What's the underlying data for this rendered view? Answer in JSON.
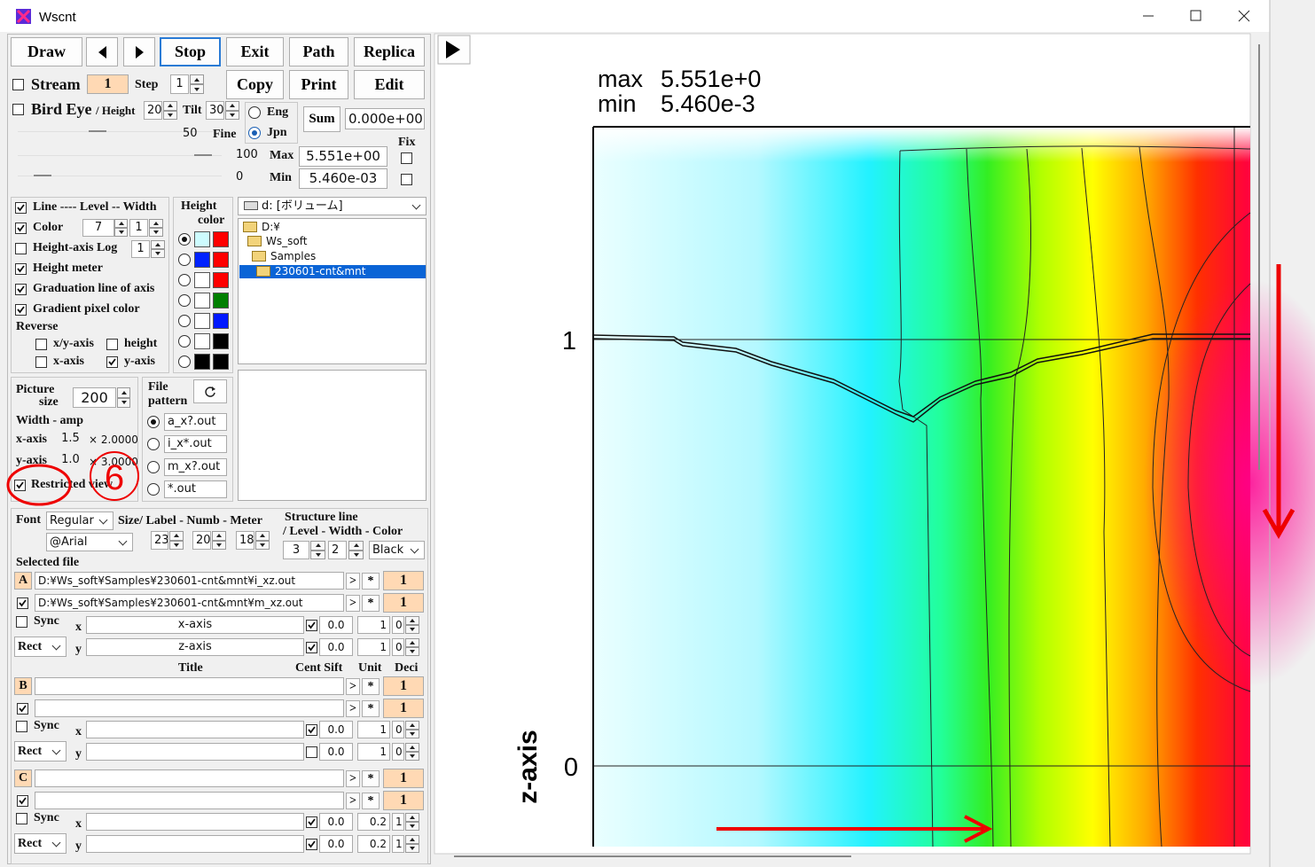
{
  "window": {
    "title": "Wscnt"
  },
  "toolbar": {
    "draw": "Draw",
    "stop": "Stop",
    "exit": "Exit",
    "path": "Path",
    "replica": "Replica",
    "copy": "Copy",
    "print": "Print",
    "edit": "Edit"
  },
  "stream": {
    "label": "Stream",
    "value": "1",
    "step_label": "Step",
    "step": "1"
  },
  "bird_eye": {
    "label": "Bird Eye",
    "height_label": "/ Height",
    "height": "20",
    "tilt_label": "Tilt",
    "tilt": "30",
    "fine_value": "50",
    "fine_label": "Fine"
  },
  "language": {
    "eng": "Eng",
    "jpn": "Jpn"
  },
  "sum": {
    "button": "Sum",
    "value": "0.000e+00"
  },
  "range": {
    "fix_label": "Fix",
    "max_slider": "100",
    "max_label": "Max",
    "max": "5.551e+00",
    "min_slider": "0",
    "min_label": "Min",
    "min": "5.460e-03"
  },
  "options": {
    "line": "Line ---- Level -- Width",
    "level": "7",
    "width": "1",
    "color": "Color",
    "log": "Height-axis Log",
    "log_value": "1",
    "meter": "Height meter",
    "graduation": "Graduation line of axis",
    "gradient": "Gradient pixel color",
    "reverse": "Reverse",
    "xy_axis": "x/y-axis",
    "height": "height",
    "x_axis": "x-axis",
    "y_axis": "y-axis"
  },
  "height_color": {
    "title": "Height",
    "subtitle": "color"
  },
  "drive": "d: [ボリューム]",
  "tree": [
    "D:¥",
    "Ws_soft",
    "Samples",
    "230601-cnt&mnt"
  ],
  "picture": {
    "label": "Picture",
    "label2": "size",
    "size": "200",
    "amp_label": "Width - amp",
    "x_label": "x-axis",
    "x_amp": "1.5",
    "x_factor": "× 2.0000",
    "y_label": "y-axis",
    "y_amp": "1.0",
    "y_factor": "× 3.0000",
    "restricted": "Restricted view"
  },
  "annotation": "6",
  "file_pattern": {
    "title": "File",
    "title2": "pattern",
    "options": [
      "a_x?.out",
      "i_x*.out",
      "m_x?.out",
      "*.out"
    ]
  },
  "font": {
    "label": "Font",
    "style": "Regular",
    "face": "@Arial",
    "size_label": "Size/ Label - Numb - Meter",
    "label_size": "23",
    "numb_size": "20",
    "meter_size": "18",
    "structure_label": "Structure line",
    "structure_sub": "/ Level - Width - Color",
    "level": "3",
    "width": "2",
    "color": "Black"
  },
  "selected_file": "Selected file",
  "columns": {
    "title": "Title",
    "cent": "Cent Sift",
    "unit": "Unit",
    "deci": "Deci"
  },
  "groups": [
    {
      "rows": [
        {
          "label": "A",
          "path": "D:¥Ws_soft¥Samples¥230601-cnt&mnt¥i_xz.out",
          "go": ">",
          "star": "*",
          "count": "1"
        },
        {
          "path": "D:¥Ws_soft¥Samples¥230601-cnt&mnt¥m_xz.out",
          "go": ">",
          "star": "*",
          "count": "1"
        }
      ],
      "sync": "Sync",
      "rect": "Rect",
      "x": {
        "axis": "x",
        "title": "x-axis",
        "cent": "0.0",
        "unit": "1",
        "deci": "0"
      },
      "y": {
        "axis": "y",
        "title": "z-axis",
        "cent": "0.0",
        "unit": "1",
        "deci": "0"
      }
    },
    {
      "rows": [
        {
          "label": "B",
          "go": ">",
          "star": "*",
          "count": "1"
        },
        {
          "go": ">",
          "star": "*",
          "count": "1"
        }
      ],
      "sync": "Sync",
      "rect": "Rect",
      "x": {
        "axis": "x",
        "cent": "0.0",
        "unit": "1",
        "deci": "0"
      },
      "y": {
        "axis": "y",
        "cent": "0.0",
        "unit": "1",
        "deci": "0"
      }
    },
    {
      "rows": [
        {
          "label": "C",
          "go": ">",
          "star": "*",
          "count": "1"
        },
        {
          "go": ">",
          "star": "*",
          "count": "1"
        }
      ],
      "sync": "Sync",
      "rect": "Rect",
      "x": {
        "axis": "x",
        "cent": "0.0",
        "unit": "0.2",
        "deci": "1"
      },
      "y": {
        "axis": "y",
        "cent": "0.0",
        "unit": "0.2",
        "deci": "1"
      }
    }
  ],
  "plot": {
    "max_label": "max",
    "max": "5.551e+0",
    "min_label": "min",
    "min": "5.460e-3",
    "yticks": [
      "1",
      "0"
    ],
    "ylabel": "z-axis"
  }
}
